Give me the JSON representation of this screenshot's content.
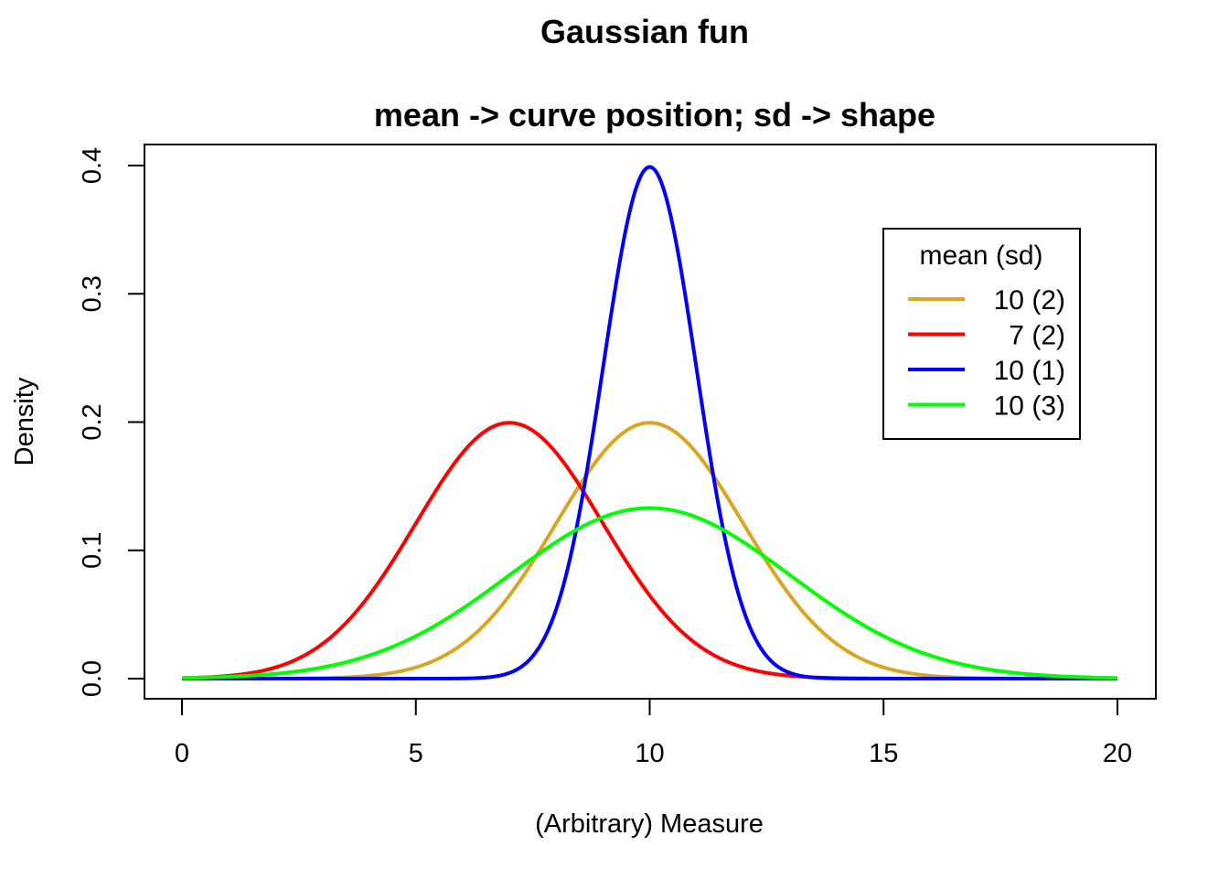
{
  "chart_data": {
    "type": "line",
    "title": "Gaussian fun",
    "subtitle": "mean -> curve position; sd -> shape",
    "xlabel": "(Arbitrary) Measure",
    "ylabel": "Density",
    "xlim": [
      0,
      20
    ],
    "ylim": [
      0,
      0.4
    ],
    "xticks": [
      0,
      5,
      10,
      15,
      20
    ],
    "yticks": [
      0.0,
      0.1,
      0.2,
      0.3,
      0.4
    ],
    "xtick_labels": [
      "0",
      "5",
      "10",
      "15",
      "20"
    ],
    "ytick_labels": [
      "0.0",
      "0.1",
      "0.2",
      "0.3",
      "0.4"
    ],
    "grid": false,
    "legend": {
      "title": "mean (sd)",
      "position": "top-right"
    },
    "series": [
      {
        "name": "10 (2)",
        "mean": 10,
        "sd": 2,
        "color": "#DAA520"
      },
      {
        "name": " 7 (2)",
        "mean": 7,
        "sd": 2,
        "color": "#FF0000"
      },
      {
        "name": "10 (1)",
        "mean": 10,
        "sd": 1,
        "color": "#0000FF"
      },
      {
        "name": "10 (3)",
        "mean": 10,
        "sd": 3,
        "color": "#00FF00"
      }
    ]
  }
}
